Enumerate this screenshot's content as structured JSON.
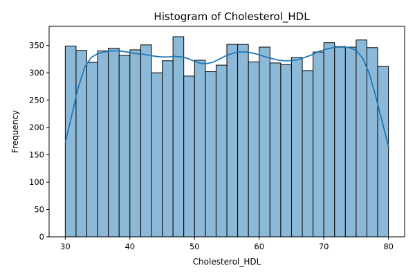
{
  "chart_data": {
    "type": "bar",
    "title": "Histogram of Cholesterol_HDL",
    "xlabel": "Cholesterol_HDL",
    "ylabel": "Frequency",
    "xlim": [
      27.5,
      82.5
    ],
    "ylim": [
      0,
      385
    ],
    "xticks": [
      30,
      40,
      50,
      60,
      70,
      80
    ],
    "yticks": [
      0,
      50,
      100,
      150,
      200,
      250,
      300,
      350
    ],
    "bin_start": 30,
    "bin_width": 1.6667,
    "values": [
      349,
      341,
      319,
      340,
      345,
      332,
      342,
      351,
      300,
      322,
      366,
      294,
      323,
      302,
      314,
      352,
      352,
      320,
      347,
      318,
      315,
      328,
      304,
      338,
      355,
      348,
      347,
      360,
      346,
      312
    ],
    "kde": {
      "x": [
        30,
        31,
        32,
        33,
        34,
        35,
        36,
        37,
        38,
        39,
        40,
        41,
        42,
        43,
        44,
        45,
        46,
        47,
        48,
        49,
        50,
        51,
        52,
        53,
        54,
        55,
        56,
        57,
        58,
        59,
        60,
        61,
        62,
        63,
        64,
        65,
        66,
        67,
        68,
        69,
        70,
        71,
        72,
        73,
        74,
        75,
        76,
        77,
        78,
        79,
        80
      ],
      "y": [
        172,
        222,
        273,
        310,
        328,
        335,
        338,
        340,
        340,
        339,
        337,
        335,
        334,
        332,
        330,
        329,
        329,
        330,
        329,
        326,
        321,
        317,
        317,
        320,
        326,
        332,
        336,
        338,
        338,
        336,
        333,
        329,
        326,
        323,
        322,
        322,
        324,
        328,
        332,
        338,
        342,
        345,
        347,
        347,
        346,
        341,
        327,
        300,
        258,
        212,
        165
      ]
    },
    "colors": {
      "bar_fill": "#8db9d9",
      "bar_edge": "#000000",
      "line": "#1f77b4"
    },
    "grid": false
  }
}
